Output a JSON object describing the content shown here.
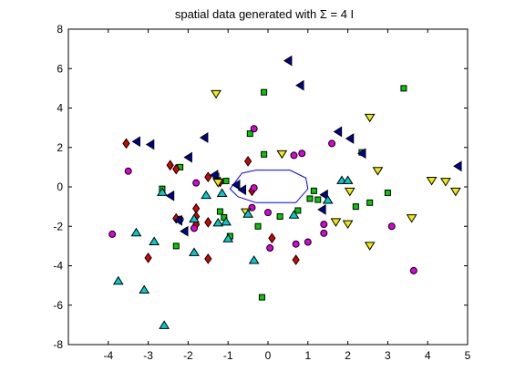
{
  "chart_data": {
    "type": "scatter",
    "title": "spatial data generated with Σ = 4 I",
    "xlim": [
      -5,
      5
    ],
    "ylim": [
      -8,
      8
    ],
    "xticks": [
      "-4",
      "-3",
      "-2",
      "-1",
      "0",
      "1",
      "2",
      "3",
      "4",
      "5"
    ],
    "yticks": [
      "-8",
      "-6",
      "-4",
      "-2",
      "0",
      "2",
      "4",
      "6",
      "8"
    ],
    "grid": false,
    "series": [
      {
        "marker": "square",
        "color": "#00cc00",
        "points": [
          [
            -0.1,
            4.8
          ],
          [
            3.4,
            5
          ],
          [
            -1.05,
            0.3
          ],
          [
            -2.2,
            1
          ],
          [
            -0.45,
            2.7
          ],
          [
            -2.65,
            -0.1
          ],
          [
            -2.3,
            -3
          ],
          [
            -1.3,
            0.55
          ],
          [
            1.25,
            -0.65
          ],
          [
            -0.1,
            1.65
          ],
          [
            2.35,
            1.75
          ],
          [
            3.0,
            -0.3
          ],
          [
            1.15,
            -0.2
          ],
          [
            0.3,
            -1.5
          ],
          [
            0.75,
            -1.2
          ],
          [
            2.2,
            -1
          ],
          [
            2.55,
            -0.8
          ],
          [
            1.05,
            -0.6
          ],
          [
            -0.95,
            -2.5
          ],
          [
            -1.1,
            -1.55
          ],
          [
            -0.25,
            -2
          ],
          [
            -0.15,
            -5.6
          ],
          [
            -1.2,
            -1.25
          ]
        ]
      },
      {
        "marker": "diamond",
        "color": "#dd0000",
        "points": [
          [
            -3.55,
            2.2
          ],
          [
            -2.45,
            1.1
          ],
          [
            -2.3,
            0.9
          ],
          [
            -1.5,
            0.5
          ],
          [
            -0.5,
            1.3
          ],
          [
            -1.8,
            -1.1
          ],
          [
            -1.8,
            -1.5
          ],
          [
            -1.8,
            -1.9
          ],
          [
            -2.3,
            -1.6
          ],
          [
            -1.5,
            -1.8
          ],
          [
            -0.4,
            -0.2
          ],
          [
            0.1,
            -2.6
          ],
          [
            -3.0,
            -3.6
          ],
          [
            -1.5,
            -3.65
          ],
          [
            0.7,
            -3.7
          ],
          [
            -1.2,
            0.25
          ]
        ]
      },
      {
        "marker": "circle",
        "color": "#dd00dd",
        "points": [
          [
            -3.5,
            0.8
          ],
          [
            -0.35,
            2.95
          ],
          [
            1.6,
            2.2
          ],
          [
            0.65,
            1.6
          ],
          [
            0.85,
            1.7
          ],
          [
            -1.8,
            0.2
          ],
          [
            -0.35,
            -0.05
          ],
          [
            0,
            -1.3
          ],
          [
            -0.4,
            -1.05
          ],
          [
            -2.2,
            -1.65
          ],
          [
            -1.85,
            -2.1
          ],
          [
            1.4,
            -1.9
          ],
          [
            1.4,
            -2.35
          ],
          [
            3.1,
            -2
          ],
          [
            -3.9,
            -2.4
          ],
          [
            0.05,
            -3.1
          ],
          [
            0.7,
            -2.9
          ],
          [
            1.0,
            -2.8
          ],
          [
            3.65,
            -4.25
          ]
        ]
      },
      {
        "marker": "triangle-left",
        "color": "#000099",
        "points": [
          [
            0.5,
            6.4
          ],
          [
            0.8,
            5.15
          ],
          [
            -3.3,
            2.3
          ],
          [
            -2.95,
            2.15
          ],
          [
            -1.6,
            2.5
          ],
          [
            -2.0,
            1.5
          ],
          [
            1.75,
            2.8
          ],
          [
            2.05,
            2.45
          ],
          [
            2.35,
            1.7
          ],
          [
            4.75,
            1.05
          ],
          [
            -1.35,
            0.6
          ],
          [
            -0.8,
            0.1
          ],
          [
            -2.45,
            -0.45
          ],
          [
            -2.1,
            -2.25
          ],
          [
            1.4,
            -0.4
          ],
          [
            1.35,
            -1.15
          ],
          [
            -0.65,
            -0.15
          ],
          [
            -2.25,
            -1.7
          ]
        ]
      },
      {
        "marker": "triangle-down",
        "color": "#eeee00",
        "points": [
          [
            -1.3,
            4.7
          ],
          [
            2.55,
            3.5
          ],
          [
            2.75,
            0.8
          ],
          [
            0.35,
            1.65
          ],
          [
            4.1,
            0.3
          ],
          [
            4.45,
            0.25
          ],
          [
            4.7,
            -0.25
          ],
          [
            2.05,
            -0.25
          ],
          [
            2.0,
            -1.9
          ],
          [
            1.7,
            -1.8
          ],
          [
            3.6,
            -1.6
          ],
          [
            -1.25,
            0.2
          ],
          [
            2.55,
            -3
          ],
          [
            -0.55,
            -1.3
          ]
        ]
      },
      {
        "marker": "triangle-up",
        "color": "#00cccc",
        "points": [
          [
            -1.15,
            -0.3
          ],
          [
            -1.55,
            -0.4
          ],
          [
            -1.05,
            -1.75
          ],
          [
            -1.25,
            -1.8
          ],
          [
            -1.85,
            -1.6
          ],
          [
            -1.0,
            -2.6
          ],
          [
            -0.5,
            -1.35
          ],
          [
            0.65,
            -1.4
          ],
          [
            1.5,
            -0.65
          ],
          [
            1.85,
            0.35
          ],
          [
            2.0,
            0.35
          ],
          [
            -2.65,
            -0.25
          ],
          [
            -3.3,
            -2.3
          ],
          [
            -2.85,
            -2.75
          ],
          [
            -1.85,
            -3.3
          ],
          [
            -0.35,
            -3.7
          ],
          [
            -3.75,
            -4.75
          ],
          [
            -3.1,
            -5.2
          ],
          [
            -2.6,
            -7
          ]
        ]
      }
    ],
    "polygon": {
      "color": "#0000ff",
      "points": [
        [
          -0.65,
          0.7
        ],
        [
          -0.3,
          0.85
        ],
        [
          0.55,
          0.85
        ],
        [
          0.95,
          0.45
        ],
        [
          1.0,
          -0.1
        ],
        [
          0.7,
          -0.8
        ],
        [
          -0.3,
          -0.8
        ],
        [
          -0.75,
          -0.5
        ],
        [
          -0.95,
          -0.1
        ]
      ]
    }
  }
}
